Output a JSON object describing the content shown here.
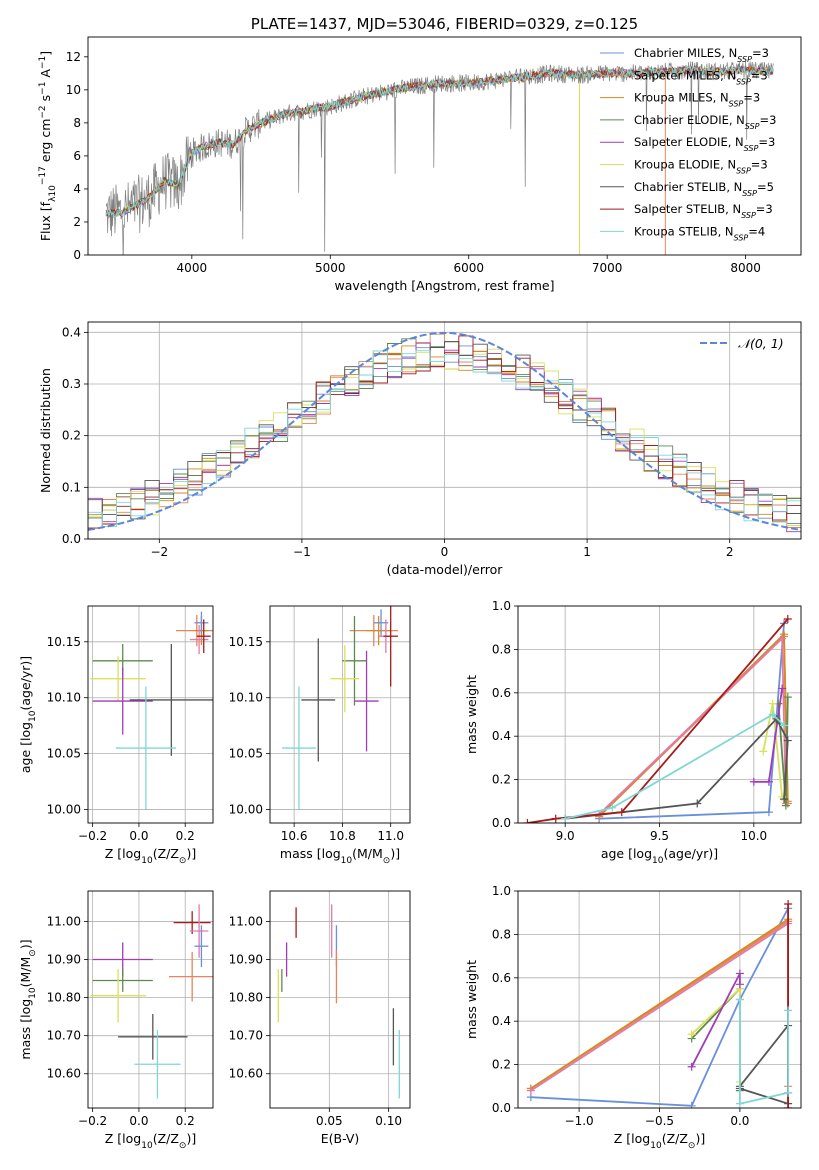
{
  "chart_data": [
    {
      "id": "spectrum",
      "type": "line",
      "title": "PLATE=1437, MJD=53046, FIBERID=0329, z=0.125",
      "xlabel": "wavelength [Angstrom, rest frame]",
      "ylabel_parts": [
        "Flux [f",
        "λ",
        "10",
        "−17",
        " erg cm",
        "−2",
        " s",
        "−1",
        " A",
        "−1",
        "]"
      ],
      "xlim": [
        3250,
        8400
      ],
      "ylim": [
        0,
        13.2
      ],
      "xticks": [
        4000,
        5000,
        6000,
        7000,
        8000
      ],
      "yticks": [
        0,
        2,
        4,
        6,
        8,
        10,
        12
      ],
      "continuum": {
        "x": [
          3380,
          3500,
          3600,
          3700,
          3800,
          3900,
          4000,
          4100,
          4200,
          4300,
          4400,
          4500,
          4600,
          4700,
          4800,
          4900,
          5000,
          5200,
          5400,
          5600,
          5800,
          6000,
          6200,
          6400,
          6600,
          6800,
          7000,
          7200,
          7400,
          7600,
          7800,
          8000,
          8200
        ],
        "y": [
          2.5,
          2.6,
          3.0,
          3.5,
          4.5,
          4.2,
          6.2,
          6.6,
          6.8,
          6.7,
          7.6,
          8.0,
          8.3,
          8.6,
          8.7,
          8.9,
          9.0,
          9.5,
          9.9,
          10.2,
          10.4,
          10.4,
          10.6,
          10.8,
          11.0,
          10.9,
          11.0,
          11.0,
          11.1,
          11.2,
          11.1,
          11.2,
          11.1
        ]
      },
      "legend": [
        {
          "label": "Chabrier MILES, N",
          "sub": "SSP",
          "tail": "=3",
          "color": "#6a8fdb"
        },
        {
          "label": "Salpeter MILES, N",
          "sub": "SSP",
          "tail": "=3",
          "color": "#e8845b"
        },
        {
          "label": "Kroupa MILES, N",
          "sub": "SSP",
          "tail": "=3",
          "color": "#d48a1e"
        },
        {
          "label": "Chabrier ELODIE, N",
          "sub": "SSP",
          "tail": "=3",
          "color": "#5e8a4e"
        },
        {
          "label": "Salpeter ELODIE, N",
          "sub": "SSP",
          "tail": "=3",
          "color": "#a03cb8"
        },
        {
          "label": "Kroupa ELODIE, N",
          "sub": "SSP",
          "tail": "=3",
          "color": "#d9e05a"
        },
        {
          "label": "Chabrier STELIB, N",
          "sub": "SSP",
          "tail": "=5",
          "color": "#555555"
        },
        {
          "label": "Salpeter STELIB, N",
          "sub": "SSP",
          "tail": "=3",
          "color": "#a51c1c"
        },
        {
          "label": "Kroupa STELIB, N",
          "sub": "SSP",
          "tail": "=4",
          "color": "#7fd6d6"
        }
      ]
    },
    {
      "id": "residuals",
      "type": "histogram",
      "xlabel": "(data-model)/error",
      "ylabel": "Normed distribution",
      "xlim": [
        -2.5,
        2.5
      ],
      "ylim": [
        0,
        0.42
      ],
      "xticks": [
        -2,
        -1,
        0,
        1,
        2
      ],
      "yticks": [
        0.0,
        0.1,
        0.2,
        0.3,
        0.4
      ],
      "legend_label": "𝒩(0, 1)",
      "gauss_color": "#5b86d9",
      "grid": true
    },
    {
      "id": "age_vs_Z",
      "type": "errorbar",
      "xlabel_parts": [
        "Z [log",
        "10",
        "(Z/Z",
        "⊙",
        ")]"
      ],
      "ylabel_parts": [
        "age  [log",
        "10",
        "(age/yr)]"
      ],
      "xlim": [
        -0.22,
        0.32
      ],
      "ylim": [
        9.988,
        10.182
      ],
      "xticks": [
        -0.2,
        0.0,
        0.2
      ],
      "yticks": [
        10.0,
        10.05,
        10.1,
        10.15
      ],
      "points": [
        {
          "x": 0.25,
          "y": 10.16,
          "xerr": 0.09,
          "yerr": 0.014,
          "color": "#e8845b"
        },
        {
          "x": 0.27,
          "y": 10.16,
          "xerr": 0.03,
          "yerr": 0.013,
          "color": "#d48a1e"
        },
        {
          "x": 0.27,
          "y": 10.167,
          "xerr": 0.03,
          "yerr": 0.01,
          "color": "#6a8fdb"
        },
        {
          "x": 0.26,
          "y": 10.152,
          "xerr": 0.04,
          "yerr": 0.013,
          "color": "#e07aab"
        },
        {
          "x": 0.28,
          "y": 10.155,
          "xerr": 0.03,
          "yerr": 0.015,
          "color": "#a51c1c"
        },
        {
          "x": -0.07,
          "y": 10.133,
          "xerr": 0.13,
          "yerr": 0.015,
          "color": "#5e8a4e"
        },
        {
          "x": -0.09,
          "y": 10.117,
          "xerr": 0.12,
          "yerr": 0.02,
          "color": "#d9e05a"
        },
        {
          "x": -0.07,
          "y": 10.097,
          "xerr": 0.13,
          "yerr": 0.03,
          "color": "#a03cb8"
        },
        {
          "x": 0.14,
          "y": 10.098,
          "xerr": 0.18,
          "yerr": 0.05,
          "color": "#555555"
        },
        {
          "x": 0.03,
          "y": 10.055,
          "xerr": 0.13,
          "yerr": 0.055,
          "color": "#7fd6d6"
        }
      ]
    },
    {
      "id": "age_vs_mass",
      "type": "errorbar",
      "xlabel_parts": [
        "mass [log",
        "10",
        "(M/M",
        "⊙",
        ")]"
      ],
      "xlim": [
        10.5,
        11.08
      ],
      "ylim": [
        9.988,
        10.182
      ],
      "xticks": [
        10.6,
        10.8,
        11.0
      ],
      "yticks": [
        10.0,
        10.05,
        10.1,
        10.15
      ],
      "points": [
        {
          "x": 10.93,
          "y": 10.16,
          "xerr": 0.1,
          "yerr": 0.014,
          "color": "#e8845b"
        },
        {
          "x": 10.95,
          "y": 10.16,
          "xerr": 0.05,
          "yerr": 0.013,
          "color": "#d48a1e"
        },
        {
          "x": 10.96,
          "y": 10.167,
          "xerr": 0.03,
          "yerr": 0.012,
          "color": "#6a8fdb"
        },
        {
          "x": 10.98,
          "y": 10.155,
          "xerr": 0.03,
          "yerr": 0.015,
          "color": "#e07aab"
        },
        {
          "x": 11.0,
          "y": 10.155,
          "xerr": 0.03,
          "yerr": 0.045,
          "color": "#a51c1c"
        },
        {
          "x": 10.85,
          "y": 10.133,
          "xerr": 0.05,
          "yerr": 0.04,
          "color": "#5e8a4e"
        },
        {
          "x": 10.81,
          "y": 10.117,
          "xerr": 0.06,
          "yerr": 0.03,
          "color": "#d9e05a"
        },
        {
          "x": 10.9,
          "y": 10.097,
          "xerr": 0.05,
          "yerr": 0.045,
          "color": "#a03cb8"
        },
        {
          "x": 10.7,
          "y": 10.098,
          "xerr": 0.07,
          "yerr": 0.055,
          "color": "#555555"
        },
        {
          "x": 10.62,
          "y": 10.055,
          "xerr": 0.07,
          "yerr": 0.055,
          "color": "#7fd6d6"
        }
      ]
    },
    {
      "id": "massweight_vs_age",
      "type": "line",
      "xlabel_parts": [
        "age  [log",
        "10",
        "(age/yr)]"
      ],
      "ylabel": "mass weight",
      "xlim": [
        8.75,
        10.25
      ],
      "ylim": [
        0,
        1
      ],
      "xticks": [
        9.0,
        9.5,
        10.0
      ],
      "yticks": [
        0.0,
        0.2,
        0.4,
        0.6,
        0.8,
        1.0
      ],
      "series": [
        {
          "color": "#6a8fdb",
          "x": [
            9.18,
            10.08,
            10.16
          ],
          "y": [
            0.02,
            0.05,
            0.92
          ]
        },
        {
          "color": "#e8845b",
          "x": [
            9.18,
            10.16,
            10.18
          ],
          "y": [
            0.03,
            0.86,
            0.1
          ]
        },
        {
          "color": "#d48a1e",
          "x": [
            9.18,
            10.16,
            10.18
          ],
          "y": [
            0.03,
            0.87,
            0.09
          ]
        },
        {
          "color": "#e07aab",
          "x": [
            9.18,
            10.15,
            10.17
          ],
          "y": [
            0.04,
            0.85,
            0.09
          ]
        },
        {
          "color": "#5e8a4e",
          "x": [
            10.13,
            10.17,
            10.18
          ],
          "y": [
            0.55,
            0.08,
            0.58
          ]
        },
        {
          "color": "#d9e05a",
          "x": [
            10.05,
            10.1,
            10.15
          ],
          "y": [
            0.33,
            0.55,
            0.12
          ]
        },
        {
          "color": "#a03cb8",
          "x": [
            10.0,
            10.08,
            10.15
          ],
          "y": [
            0.19,
            0.19,
            0.62
          ]
        },
        {
          "color": "#555555",
          "x": [
            9.0,
            9.7,
            10.12,
            10.18,
            10.16
          ],
          "y": [
            0.02,
            0.09,
            0.48,
            0.38,
            0.11
          ]
        },
        {
          "color": "#a51c1c",
          "x": [
            8.8,
            8.95,
            9.3,
            10.18
          ],
          "y": [
            0.0,
            0.02,
            0.05,
            0.94
          ]
        },
        {
          "color": "#7fd6d6",
          "x": [
            9.0,
            9.25,
            10.1,
            10.16
          ],
          "y": [
            0.02,
            0.07,
            0.5,
            0.45
          ]
        }
      ]
    },
    {
      "id": "mass_vs_Z",
      "type": "errorbar",
      "xlabel_parts": [
        "Z [log",
        "10",
        "(Z/Z",
        "⊙",
        ")]"
      ],
      "ylabel_parts": [
        "mass [log",
        "10",
        "(M/M",
        "⊙",
        ")]"
      ],
      "xlim": [
        -0.22,
        0.32
      ],
      "ylim": [
        10.51,
        11.08
      ],
      "xticks": [
        -0.2,
        0.0,
        0.2
      ],
      "yticks": [
        10.6,
        10.7,
        10.8,
        10.9,
        11.0
      ],
      "points": [
        {
          "x": 0.23,
          "y": 10.997,
          "xerr": 0.08,
          "yerr": 0.03,
          "color": "#a51c1c"
        },
        {
          "x": 0.26,
          "y": 10.975,
          "xerr": 0.04,
          "yerr": 0.07,
          "color": "#e07aab"
        },
        {
          "x": 0.27,
          "y": 10.935,
          "xerr": 0.03,
          "yerr": 0.055,
          "color": "#6a8fdb"
        },
        {
          "x": 0.23,
          "y": 10.855,
          "xerr": 0.1,
          "yerr": 0.065,
          "color": "#e8845b"
        },
        {
          "x": -0.07,
          "y": 10.9,
          "xerr": 0.13,
          "yerr": 0.045,
          "color": "#a03cb8"
        },
        {
          "x": -0.07,
          "y": 10.845,
          "xerr": 0.13,
          "yerr": 0.03,
          "color": "#5e8a4e"
        },
        {
          "x": -0.09,
          "y": 10.805,
          "xerr": 0.12,
          "yerr": 0.07,
          "color": "#d9e05a"
        },
        {
          "x": 0.06,
          "y": 10.697,
          "xerr": 0.15,
          "yerr": 0.06,
          "color": "#555555"
        },
        {
          "x": 0.08,
          "y": 10.625,
          "xerr": 0.1,
          "yerr": 0.09,
          "color": "#7fd6d6"
        }
      ]
    },
    {
      "id": "mass_vs_EBV",
      "type": "errorbar",
      "xlabel": "E(B-V)",
      "xlim": [
        0.0,
        0.118
      ],
      "ylim": [
        10.51,
        11.08
      ],
      "xticks": [
        0.05,
        0.1
      ],
      "yticks": [
        10.6,
        10.7,
        10.8,
        10.9,
        11.0
      ],
      "points": [
        {
          "x": 0.022,
          "y": 10.997,
          "xerr": 0.0,
          "yerr": 0.04,
          "color": "#a51c1c"
        },
        {
          "x": 0.052,
          "y": 10.975,
          "xerr": 0.0,
          "yerr": 0.07,
          "color": "#e07aab"
        },
        {
          "x": 0.056,
          "y": 10.935,
          "xerr": 0.0,
          "yerr": 0.055,
          "color": "#6a8fdb"
        },
        {
          "x": 0.056,
          "y": 10.855,
          "xerr": 0.0,
          "yerr": 0.07,
          "color": "#e8845b"
        },
        {
          "x": 0.014,
          "y": 10.9,
          "xerr": 0.0,
          "yerr": 0.045,
          "color": "#a03cb8"
        },
        {
          "x": 0.01,
          "y": 10.845,
          "xerr": 0.0,
          "yerr": 0.03,
          "color": "#5e8a4e"
        },
        {
          "x": 0.007,
          "y": 10.805,
          "xerr": 0.0,
          "yerr": 0.07,
          "color": "#d9e05a"
        },
        {
          "x": 0.104,
          "y": 10.697,
          "xerr": 0.0,
          "yerr": 0.075,
          "color": "#555555"
        },
        {
          "x": 0.109,
          "y": 10.625,
          "xerr": 0.0,
          "yerr": 0.09,
          "color": "#7fd6d6"
        }
      ]
    },
    {
      "id": "massweight_vs_Z",
      "type": "line",
      "xlabel_parts": [
        "Z [log",
        "10",
        "(Z/Z",
        "⊙",
        ")]"
      ],
      "ylabel": "mass weight",
      "xlim": [
        -1.38,
        0.38
      ],
      "ylim": [
        0,
        1
      ],
      "xticks": [
        -1.0,
        -0.5,
        0.0
      ],
      "yticks": [
        0.0,
        0.2,
        0.4,
        0.6,
        0.8,
        1.0
      ],
      "series": [
        {
          "color": "#6a8fdb",
          "x": [
            -1.3,
            -0.3,
            0.0,
            0.3,
            0.3
          ],
          "y": [
            0.05,
            0.01,
            0.5,
            0.92,
            0.07
          ]
        },
        {
          "color": "#e8845b",
          "x": [
            -1.3,
            0.3,
            0.3
          ],
          "y": [
            0.09,
            0.86,
            0.1
          ]
        },
        {
          "color": "#d48a1e",
          "x": [
            -1.3,
            0.3
          ],
          "y": [
            0.09,
            0.87
          ]
        },
        {
          "color": "#e07aab",
          "x": [
            -1.3,
            0.3
          ],
          "y": [
            0.08,
            0.85
          ]
        },
        {
          "color": "#5e8a4e",
          "x": [
            -0.3,
            0.0,
            0.0
          ],
          "y": [
            0.32,
            0.55,
            0.08
          ]
        },
        {
          "color": "#d9e05a",
          "x": [
            -0.3,
            0.0,
            0.0
          ],
          "y": [
            0.34,
            0.55,
            0.12
          ]
        },
        {
          "color": "#a03cb8",
          "x": [
            -0.3,
            0.0,
            0.0
          ],
          "y": [
            0.19,
            0.62,
            0.57
          ]
        },
        {
          "color": "#555555",
          "x": [
            0.0,
            0.3,
            0.3,
            0.0
          ],
          "y": [
            0.09,
            0.02,
            0.38,
            0.1
          ]
        },
        {
          "color": "#a51c1c",
          "x": [
            0.3,
            0.3
          ],
          "y": [
            0.0,
            0.94
          ]
        },
        {
          "color": "#7fd6d6",
          "x": [
            0.0,
            0.0,
            0.3,
            0.3
          ],
          "y": [
            0.5,
            0.02,
            0.07,
            0.45
          ]
        }
      ]
    }
  ]
}
